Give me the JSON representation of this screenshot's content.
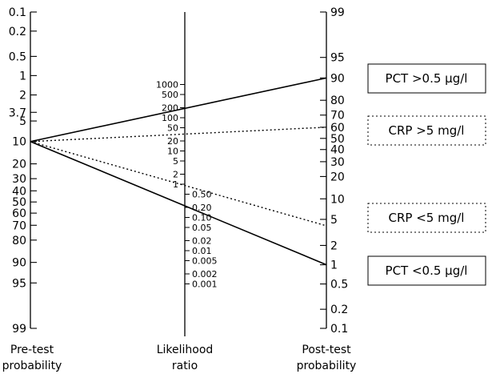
{
  "chart_data": {
    "type": "nomogram",
    "title": "",
    "axes": [
      {
        "id": "pretest",
        "label": [
          "Pre-test",
          "probability"
        ],
        "ticks": [
          "0.1",
          "0.2",
          "0.5",
          "1",
          "2",
          "3.7",
          "5",
          "10",
          "20",
          "30",
          "40",
          "50",
          "60",
          "70",
          "80",
          "90",
          "95",
          "99"
        ]
      },
      {
        "id": "likelihood",
        "label": [
          "Likelihood",
          "ratio"
        ],
        "ticks_upper": [
          "1000",
          "500",
          "200",
          "100",
          "50",
          "20",
          "10",
          "5",
          "2",
          "1"
        ],
        "ticks_lower": [
          "0.50",
          "0.20",
          "0.10",
          "0.05",
          "0.02",
          "0.01",
          "0.005",
          "0.002",
          "0.001"
        ]
      },
      {
        "id": "posttest",
        "label": [
          "Post-test",
          "probability"
        ],
        "ticks": [
          "99",
          "95",
          "90",
          "80",
          "70",
          "60",
          "50",
          "40",
          "30",
          "20",
          "10",
          "5",
          "2",
          "1",
          "0.5",
          "0.2",
          "0.1"
        ]
      }
    ],
    "series": [
      {
        "name": "PCT >0.5 µg/l",
        "pretest_probability": 10,
        "posttest_probability": 90,
        "line_style": "solid"
      },
      {
        "name": "CRP >5 mg/l",
        "pretest_probability": 10,
        "posttest_probability": 60,
        "line_style": "dotted"
      },
      {
        "name": "CRP <5 mg/l",
        "pretest_probability": 10,
        "posttest_probability": 4,
        "line_style": "dotted"
      },
      {
        "name": "PCT <0.5 µg/l",
        "pretest_probability": 10,
        "posttest_probability": 1,
        "line_style": "solid"
      }
    ]
  }
}
